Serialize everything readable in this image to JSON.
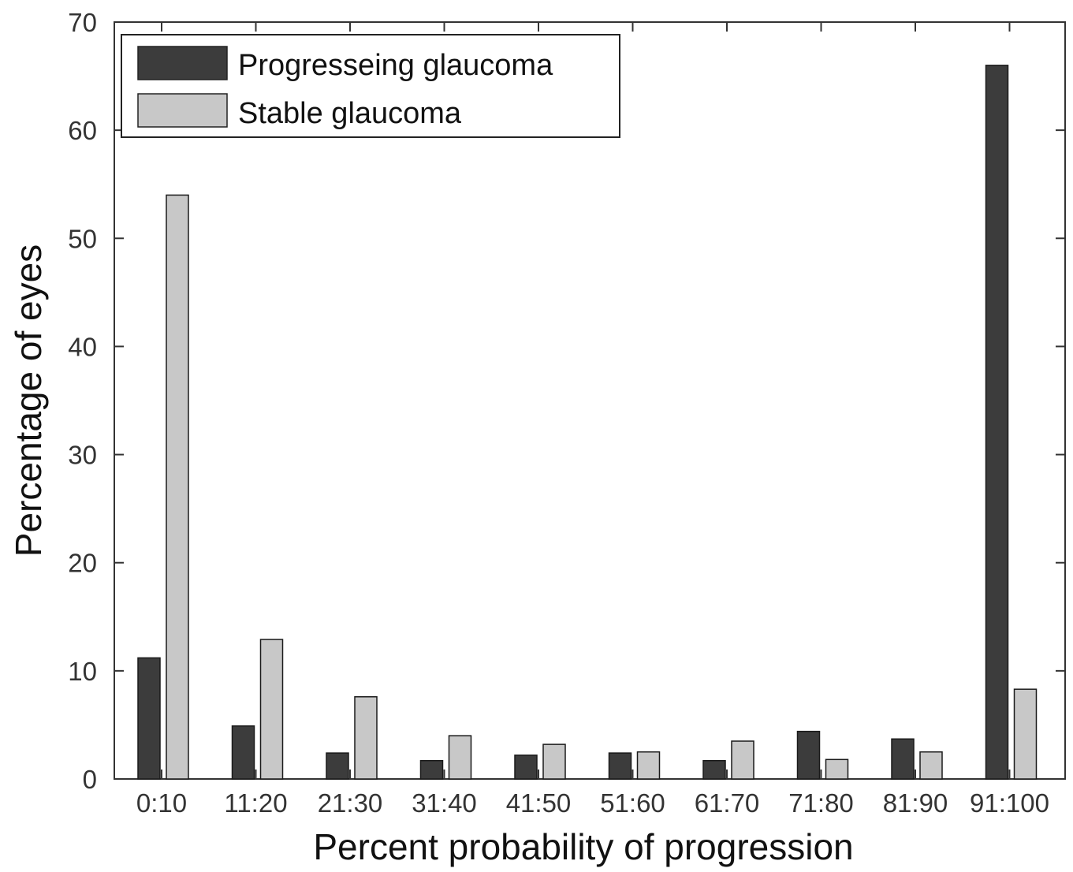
{
  "chart_data": {
    "type": "bar",
    "title": "",
    "xlabel": "Percent probability of progression",
    "ylabel": "Percentage of eyes",
    "categories": [
      "0:10",
      "11:20",
      "21:30",
      "31:40",
      "41:50",
      "51:60",
      "61:70",
      "71:80",
      "81:90",
      "91:100"
    ],
    "series": [
      {
        "name": "Progresseing glaucoma",
        "color": "#3c3c3c",
        "values": [
          11.2,
          4.9,
          2.4,
          1.7,
          2.2,
          2.4,
          1.7,
          4.4,
          3.7,
          66.0
        ]
      },
      {
        "name": "Stable glaucoma",
        "color": "#c8c8c8",
        "values": [
          54.0,
          12.9,
          7.6,
          4.0,
          3.2,
          2.5,
          3.5,
          1.8,
          2.5,
          8.3
        ]
      }
    ],
    "ylim": [
      0,
      70
    ],
    "yticks": [
      "0",
      "10",
      "20",
      "30",
      "40",
      "50",
      "60",
      "70"
    ],
    "grid": false,
    "legend_position": "top-left"
  }
}
